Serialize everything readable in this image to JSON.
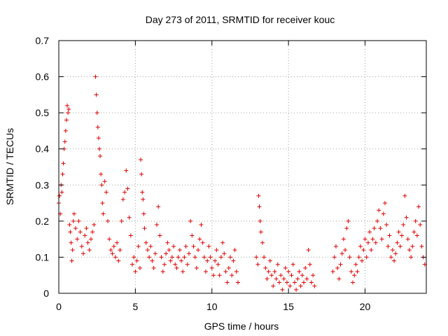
{
  "chart_data": {
    "type": "scatter",
    "title": "Day 273 of 2011, SRMTID for receiver kouc",
    "xlabel": "GPS time / hours",
    "ylabel": "SRMTID / TECUs",
    "xlim": [
      0,
      24
    ],
    "ylim": [
      0,
      0.7
    ],
    "xticks": [
      0,
      5,
      10,
      15,
      20
    ],
    "xtick_labels": [
      "0",
      "5",
      "10",
      "15",
      "20"
    ],
    "yticks": [
      0,
      0.1,
      0.2,
      0.3,
      0.4,
      0.5,
      0.6,
      0.7
    ],
    "ytick_labels": [
      "0",
      "0.1",
      "0.2",
      "0.3",
      "0.4",
      "0.5",
      "0.6",
      "0.7"
    ],
    "grid": true,
    "marker": "+",
    "color": "#e00000",
    "series": [
      {
        "name": "SRMTID",
        "points": [
          [
            0.0,
            0.25
          ],
          [
            0.05,
            0.27
          ],
          [
            0.1,
            0.22
          ],
          [
            0.15,
            0.3
          ],
          [
            0.2,
            0.28
          ],
          [
            0.25,
            0.33
          ],
          [
            0.3,
            0.36
          ],
          [
            0.35,
            0.4
          ],
          [
            0.4,
            0.42
          ],
          [
            0.45,
            0.45
          ],
          [
            0.5,
            0.48
          ],
          [
            0.55,
            0.52
          ],
          [
            0.6,
            0.5
          ],
          [
            0.65,
            0.51
          ],
          [
            0.7,
            0.19
          ],
          [
            0.75,
            0.17
          ],
          [
            0.8,
            0.14
          ],
          [
            0.85,
            0.09
          ],
          [
            0.9,
            0.12
          ],
          [
            0.95,
            0.2
          ],
          [
            1.0,
            0.22
          ],
          [
            1.1,
            0.18
          ],
          [
            1.2,
            0.15
          ],
          [
            1.3,
            0.2
          ],
          [
            1.4,
            0.17
          ],
          [
            1.5,
            0.13
          ],
          [
            1.6,
            0.11
          ],
          [
            1.7,
            0.16
          ],
          [
            1.8,
            0.18
          ],
          [
            1.9,
            0.14
          ],
          [
            2.0,
            0.12
          ],
          [
            2.1,
            0.15
          ],
          [
            2.2,
            0.17
          ],
          [
            2.3,
            0.19
          ],
          [
            2.4,
            0.6
          ],
          [
            2.45,
            0.55
          ],
          [
            2.5,
            0.5
          ],
          [
            2.55,
            0.46
          ],
          [
            2.6,
            0.43
          ],
          [
            2.65,
            0.4
          ],
          [
            2.7,
            0.38
          ],
          [
            2.75,
            0.33
          ],
          [
            2.8,
            0.3
          ],
          [
            2.85,
            0.25
          ],
          [
            2.9,
            0.22
          ],
          [
            3.0,
            0.31
          ],
          [
            3.1,
            0.28
          ],
          [
            3.2,
            0.2
          ],
          [
            3.3,
            0.15
          ],
          [
            3.4,
            0.12
          ],
          [
            3.5,
            0.11
          ],
          [
            3.6,
            0.13
          ],
          [
            3.7,
            0.1
          ],
          [
            3.8,
            0.14
          ],
          [
            3.9,
            0.09
          ],
          [
            4.0,
            0.12
          ],
          [
            4.1,
            0.2
          ],
          [
            4.2,
            0.26
          ],
          [
            4.3,
            0.28
          ],
          [
            4.4,
            0.34
          ],
          [
            4.5,
            0.29
          ],
          [
            4.6,
            0.21
          ],
          [
            4.7,
            0.16
          ],
          [
            4.8,
            0.08
          ],
          [
            4.9,
            0.1
          ],
          [
            5.0,
            0.06
          ],
          [
            5.1,
            0.09
          ],
          [
            5.2,
            0.13
          ],
          [
            5.3,
            0.07
          ],
          [
            5.35,
            0.37
          ],
          [
            5.4,
            0.33
          ],
          [
            5.45,
            0.28
          ],
          [
            5.5,
            0.26
          ],
          [
            5.55,
            0.22
          ],
          [
            5.6,
            0.18
          ],
          [
            5.7,
            0.14
          ],
          [
            5.8,
            0.12
          ],
          [
            5.9,
            0.1
          ],
          [
            6.0,
            0.13
          ],
          [
            6.1,
            0.09
          ],
          [
            6.2,
            0.07
          ],
          [
            6.3,
            0.11
          ],
          [
            6.4,
            0.19
          ],
          [
            6.5,
            0.24
          ],
          [
            6.6,
            0.16
          ],
          [
            6.7,
            0.1
          ],
          [
            6.8,
            0.06
          ],
          [
            6.9,
            0.08
          ],
          [
            7.0,
            0.11
          ],
          [
            7.1,
            0.14
          ],
          [
            7.2,
            0.12
          ],
          [
            7.3,
            0.09
          ],
          [
            7.4,
            0.1
          ],
          [
            7.5,
            0.13
          ],
          [
            7.6,
            0.08
          ],
          [
            7.7,
            0.07
          ],
          [
            7.8,
            0.1
          ],
          [
            7.9,
            0.12
          ],
          [
            8.0,
            0.09
          ],
          [
            8.1,
            0.06
          ],
          [
            8.2,
            0.1
          ],
          [
            8.3,
            0.13
          ],
          [
            8.4,
            0.08
          ],
          [
            8.5,
            0.11
          ],
          [
            8.6,
            0.2
          ],
          [
            8.7,
            0.16
          ],
          [
            8.8,
            0.13
          ],
          [
            8.9,
            0.1
          ],
          [
            9.0,
            0.07
          ],
          [
            9.1,
            0.12
          ],
          [
            9.2,
            0.15
          ],
          [
            9.3,
            0.19
          ],
          [
            9.4,
            0.14
          ],
          [
            9.5,
            0.1
          ],
          [
            9.6,
            0.06
          ],
          [
            9.7,
            0.09
          ],
          [
            9.8,
            0.13
          ],
          [
            9.9,
            0.1
          ],
          [
            10.0,
            0.07
          ],
          [
            10.1,
            0.05
          ],
          [
            10.2,
            0.09
          ],
          [
            10.3,
            0.12
          ],
          [
            10.4,
            0.08
          ],
          [
            10.5,
            0.05
          ],
          [
            10.6,
            0.1
          ],
          [
            10.7,
            0.14
          ],
          [
            10.8,
            0.11
          ],
          [
            10.9,
            0.06
          ],
          [
            11.0,
            0.03
          ],
          [
            11.1,
            0.07
          ],
          [
            11.2,
            0.1
          ],
          [
            11.3,
            0.05
          ],
          [
            11.4,
            0.09
          ],
          [
            11.5,
            0.12
          ],
          [
            11.6,
            0.06
          ],
          [
            11.7,
            0.03
          ],
          [
            12.9,
            0.1
          ],
          [
            13.0,
            0.08
          ],
          [
            13.05,
            0.27
          ],
          [
            13.1,
            0.24
          ],
          [
            13.15,
            0.2
          ],
          [
            13.2,
            0.17
          ],
          [
            13.3,
            0.14
          ],
          [
            13.4,
            0.1
          ],
          [
            13.5,
            0.07
          ],
          [
            13.6,
            0.04
          ],
          [
            13.7,
            0.06
          ],
          [
            13.8,
            0.09
          ],
          [
            13.9,
            0.05
          ],
          [
            14.0,
            0.02
          ],
          [
            14.1,
            0.06
          ],
          [
            14.2,
            0.04
          ],
          [
            14.3,
            0.08
          ],
          [
            14.4,
            0.03
          ],
          [
            14.5,
            0.05
          ],
          [
            14.6,
            0.01
          ],
          [
            14.7,
            0.04
          ],
          [
            14.8,
            0.07
          ],
          [
            14.9,
            0.03
          ],
          [
            15.0,
            0.06
          ],
          [
            15.1,
            0.02
          ],
          [
            15.2,
            0.05
          ],
          [
            15.3,
            0.08
          ],
          [
            15.4,
            0.03
          ],
          [
            15.5,
            0.01
          ],
          [
            15.6,
            0.04
          ],
          [
            15.7,
            0.06
          ],
          [
            15.8,
            0.02
          ],
          [
            15.9,
            0.05
          ],
          [
            16.0,
            0.03
          ],
          [
            16.1,
            0.07
          ],
          [
            16.2,
            0.04
          ],
          [
            16.3,
            0.12
          ],
          [
            16.4,
            0.08
          ],
          [
            16.5,
            0.03
          ],
          [
            16.6,
            0.05
          ],
          [
            16.7,
            0.02
          ],
          [
            17.9,
            0.06
          ],
          [
            18.0,
            0.1
          ],
          [
            18.1,
            0.13
          ],
          [
            18.2,
            0.07
          ],
          [
            18.3,
            0.04
          ],
          [
            18.4,
            0.08
          ],
          [
            18.5,
            0.11
          ],
          [
            18.6,
            0.15
          ],
          [
            18.7,
            0.12
          ],
          [
            18.8,
            0.18
          ],
          [
            18.9,
            0.2
          ],
          [
            19.0,
            0.1
          ],
          [
            19.1,
            0.06
          ],
          [
            19.2,
            0.03
          ],
          [
            19.3,
            0.05
          ],
          [
            19.4,
            0.08
          ],
          [
            19.5,
            0.06
          ],
          [
            19.6,
            0.1
          ],
          [
            19.7,
            0.13
          ],
          [
            19.8,
            0.09
          ],
          [
            19.9,
            0.12
          ],
          [
            20.0,
            0.15
          ],
          [
            20.1,
            0.1
          ],
          [
            20.2,
            0.14
          ],
          [
            20.3,
            0.17
          ],
          [
            20.4,
            0.12
          ],
          [
            20.5,
            0.15
          ],
          [
            20.6,
            0.18
          ],
          [
            20.7,
            0.14
          ],
          [
            20.8,
            0.2
          ],
          [
            20.9,
            0.23
          ],
          [
            21.0,
            0.18
          ],
          [
            21.1,
            0.15
          ],
          [
            21.2,
            0.22
          ],
          [
            21.3,
            0.25
          ],
          [
            21.4,
            0.19
          ],
          [
            21.5,
            0.13
          ],
          [
            21.6,
            0.16
          ],
          [
            21.7,
            0.1
          ],
          [
            21.8,
            0.12
          ],
          [
            21.9,
            0.09
          ],
          [
            22.0,
            0.11
          ],
          [
            22.1,
            0.14
          ],
          [
            22.2,
            0.17
          ],
          [
            22.3,
            0.13
          ],
          [
            22.4,
            0.16
          ],
          [
            22.5,
            0.19
          ],
          [
            22.6,
            0.27
          ],
          [
            22.7,
            0.21
          ],
          [
            22.8,
            0.15
          ],
          [
            22.9,
            0.12
          ],
          [
            23.0,
            0.1
          ],
          [
            23.1,
            0.13
          ],
          [
            23.2,
            0.17
          ],
          [
            23.3,
            0.2
          ],
          [
            23.4,
            0.16
          ],
          [
            23.5,
            0.24
          ],
          [
            23.6,
            0.19
          ],
          [
            23.7,
            0.13
          ],
          [
            23.8,
            0.1
          ],
          [
            23.9,
            0.08
          ]
        ]
      }
    ]
  }
}
